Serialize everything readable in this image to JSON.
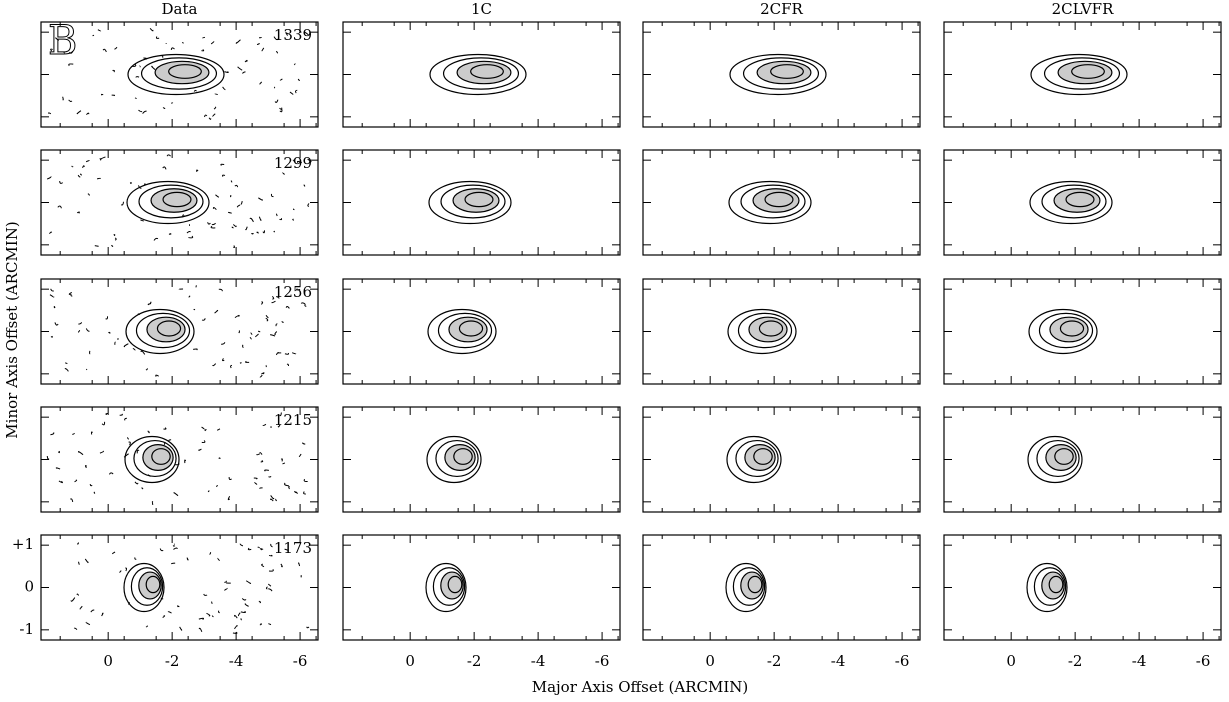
{
  "figure": {
    "panel_label": "B",
    "columns": [
      "Data",
      "1C",
      "2CFR",
      "2CLVFR"
    ],
    "rows": [
      "1339",
      "1299",
      "1256",
      "1215",
      "1173"
    ],
    "xlabel": "Major Axis Offset (ARCMIN)",
    "ylabel": "Minor Axis Offset (ARCMIN)",
    "xlim": [
      2.1,
      -6.56
    ],
    "xticks": [
      0,
      -2,
      -4,
      -6
    ],
    "ylim": [
      -1.24,
      1.24
    ],
    "yticks": [
      {
        "value": 1,
        "label": "+1"
      },
      0,
      -1
    ]
  }
}
